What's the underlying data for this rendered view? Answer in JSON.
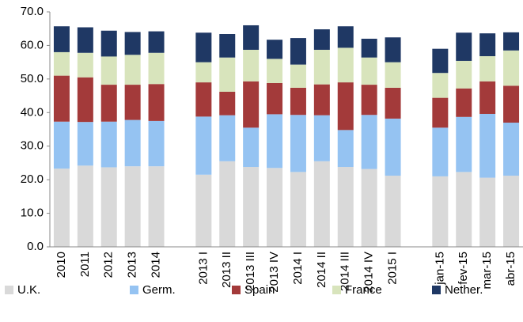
{
  "chart_data": {
    "type": "stacked_bar",
    "categories": [
      "2010",
      "2011",
      "2012",
      "2013",
      "2014",
      null,
      "2013 I",
      "2013 II",
      "2013 III",
      "2013 IV",
      "2014 I",
      "2014 II",
      "2014 III",
      "2014 IV",
      "2015 I",
      null,
      "jan-15",
      "fev-15",
      "mar-15",
      "abr-15"
    ],
    "series": [
      {
        "name": "U.K.",
        "color": "#d9d9d9",
        "values": [
          23.3,
          24.2,
          23.7,
          24.0,
          24.0,
          null,
          21.5,
          25.5,
          23.8,
          23.5,
          22.3,
          25.5,
          23.8,
          23.2,
          21.2,
          null,
          21.0,
          22.3,
          20.6,
          21.2
        ]
      },
      {
        "name": "Germ.",
        "color": "#95c3f2",
        "values": [
          14.0,
          13.0,
          13.6,
          13.8,
          13.5,
          null,
          17.3,
          13.7,
          11.7,
          16.0,
          17.0,
          13.7,
          11.0,
          16.1,
          17.0,
          null,
          14.5,
          16.4,
          19.0,
          15.8
        ]
      },
      {
        "name": "Spain",
        "color": "#a33a3a",
        "values": [
          13.7,
          13.3,
          11.0,
          10.5,
          11.0,
          null,
          10.2,
          7.0,
          13.8,
          9.3,
          8.1,
          9.2,
          14.2,
          9.0,
          9.2,
          null,
          8.9,
          8.5,
          9.7,
          11.0
        ]
      },
      {
        "name": "France",
        "color": "#d8e4bc",
        "values": [
          7.0,
          7.3,
          8.4,
          8.9,
          9.3,
          null,
          6.0,
          10.2,
          9.4,
          7.2,
          6.9,
          10.3,
          10.3,
          8.1,
          7.6,
          null,
          7.4,
          8.2,
          7.5,
          10.5
        ]
      },
      {
        "name": "Nether.",
        "color": "#1f3864",
        "values": [
          7.7,
          7.6,
          7.7,
          6.8,
          6.4,
          null,
          8.8,
          7.0,
          7.3,
          5.7,
          7.9,
          6.1,
          6.4,
          5.6,
          7.4,
          null,
          7.2,
          8.4,
          6.8,
          5.4
        ]
      }
    ],
    "ylim": [
      0,
      70
    ],
    "yticks": [
      {
        "value": 0,
        "label": "0.0"
      },
      {
        "value": 10,
        "label": "10.0"
      },
      {
        "value": 20,
        "label": "20.0"
      },
      {
        "value": 30,
        "label": "30.0"
      },
      {
        "value": 40,
        "label": "40.0"
      },
      {
        "value": 50,
        "label": "50.0"
      },
      {
        "value": 60,
        "label": "60.0"
      },
      {
        "value": 70,
        "label": "70.0"
      }
    ],
    "legend": "bottom"
  }
}
